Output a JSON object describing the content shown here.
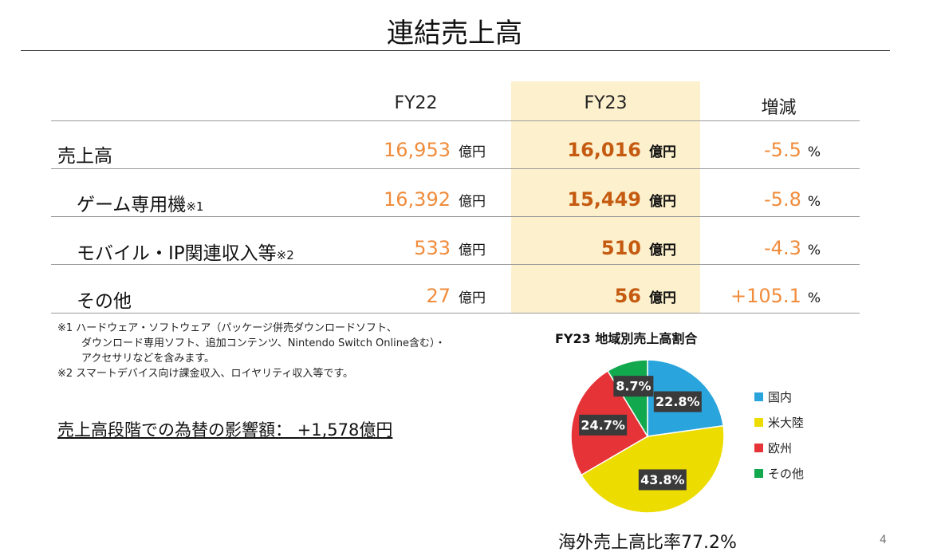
{
  "title": "連結売上高",
  "table": {
    "headers": [
      "FY22",
      "FY23",
      "増減"
    ],
    "rows": [
      {
        "label": "売上高",
        "note": "",
        "fy22": "16,953",
        "fy22_unit": "億円",
        "fy23": "16,016",
        "fy23_unit": "億円",
        "change": "-5.5",
        "change_unit": "%"
      },
      {
        "label": "ゲーム専用機",
        "note": "※1",
        "fy22": "16,392",
        "fy22_unit": "億円",
        "fy23": "15,449",
        "fy23_unit": "億円",
        "change": "-5.8",
        "change_unit": "%"
      },
      {
        "label": "モバイル・IP関連収入等",
        "note": "※2",
        "fy22": "533",
        "fy22_unit": "億円",
        "fy23": "510",
        "fy23_unit": "億円",
        "change": "-4.3",
        "change_unit": "%"
      },
      {
        "label": "その他",
        "note": "",
        "fy22": "27",
        "fy22_unit": "億円",
        "fy23": "56",
        "fy23_unit": "億円",
        "change": "+105.1",
        "change_unit": "%"
      }
    ]
  },
  "footnotes": {
    "line1": "※1 ハードウェア・ソフトウェア（パッケージ併売ダウンロードソフト、",
    "line2": "ダウンロード専用ソフト、追加コンテンツ、Nintendo Switch Online含む）・",
    "line3": "アクセサリなどを含みます。",
    "line4": "※2 スマートデバイス向け課金収入、ロイヤリティ収入等です。"
  },
  "fx_impact": "売上高段階での為替の影響額：  +1,578億円",
  "overseas_ratio": "海外売上高比率77.2%",
  "page_number": "4",
  "colors": {
    "fy23_highlight": "#fdf0cc",
    "value_orange": "#f08c3c",
    "value_bold": "#c55a11"
  },
  "chart_data": {
    "type": "pie",
    "title": "FY23 地域別売上高割合",
    "slices": [
      {
        "label": "国内",
        "value": 22.8,
        "display": "22.8%",
        "color": "#2aa4dc"
      },
      {
        "label": "米大陸",
        "value": 43.8,
        "display": "43.8%",
        "color": "#ecdc00"
      },
      {
        "label": "欧州",
        "value": 24.7,
        "display": "24.7%",
        "color": "#e63338"
      },
      {
        "label": "その他",
        "value": 8.7,
        "display": "8.7%",
        "color": "#12a84e"
      }
    ],
    "legend_position": "right",
    "start_angle_deg": 0,
    "direction": "clockwise"
  }
}
